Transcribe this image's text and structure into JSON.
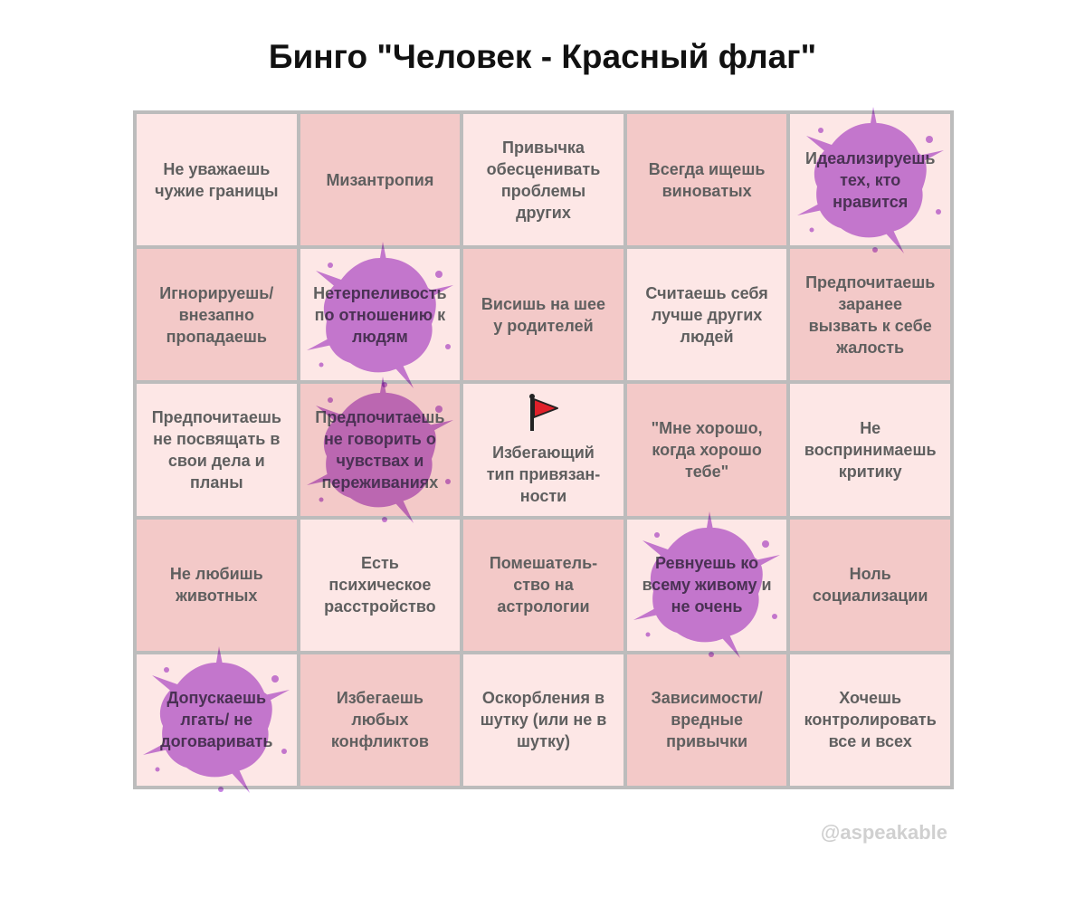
{
  "title": "Бинго \"Человек - Красный флаг\"",
  "watermark": "@aspeakable",
  "colors": {
    "cell_light": "#fde7e6",
    "cell_dark": "#f3c9c8",
    "splat": "#c077e0",
    "border": "#bcbcbc",
    "flag": "#e0202a"
  },
  "cells": [
    {
      "text": "Не уважаешь\nчужие границы",
      "marked": false
    },
    {
      "text": "Мизантропия",
      "marked": false
    },
    {
      "text": "Привычка\nобесценивать\nпроблемы\nдругих",
      "marked": false
    },
    {
      "text": "Всегда ищешь\nвиноватых",
      "marked": false
    },
    {
      "text": "Идеализируешь\nтех, кто\nнравится",
      "marked": true
    },
    {
      "text": "Игнорируешь/\nвнезапно\nпропадаешь",
      "marked": false
    },
    {
      "text": "Нетерпеливость\nпо отношению к\nлюдям",
      "marked": true
    },
    {
      "text": "Висишь на шее\nу родителей",
      "marked": false
    },
    {
      "text": "Считаешь себя\nлучше других\nлюдей",
      "marked": false
    },
    {
      "text": "Предпочитаешь\nзаранее\nвызвать к себе\nжалость",
      "marked": false
    },
    {
      "text": "Предпочитаешь\nне посвящать в\nсвои дела и\nпланы",
      "marked": false
    },
    {
      "text": "Предпочитаешь\nне говорить о\nчувствах и\nпереживаниях",
      "marked": true
    },
    {
      "text": "Избегающий\nтип привязан-\nности",
      "marked": false,
      "icon": "red-flag-icon"
    },
    {
      "text": "\"Мне хорошо,\nкогда хорошо\nтебе\"",
      "marked": false
    },
    {
      "text": "Не\nвоспринимаешь\nкритику",
      "marked": false
    },
    {
      "text": "Не любишь\nживотных",
      "marked": false
    },
    {
      "text": "Есть\nпсихическое\nрасстройство",
      "marked": false
    },
    {
      "text": "Помешатель-\nство на\nастрологии",
      "marked": false
    },
    {
      "text": "Ревнуешь ко\nвсему живому и\nне очень",
      "marked": true
    },
    {
      "text": "Ноль\nсоциализации",
      "marked": false
    },
    {
      "text": "Допускаешь\nлгать/ не\nдоговаривать",
      "marked": true
    },
    {
      "text": "Избегаешь\nлюбых\nконфликтов",
      "marked": false
    },
    {
      "text": "Оскорбления в\nшутку (или не в\nшутку)",
      "marked": false
    },
    {
      "text": "Зависимости/\nвредные\nпривычки",
      "marked": false
    },
    {
      "text": "Хочешь\nконтролировать\nвсе и всех",
      "marked": false
    }
  ]
}
